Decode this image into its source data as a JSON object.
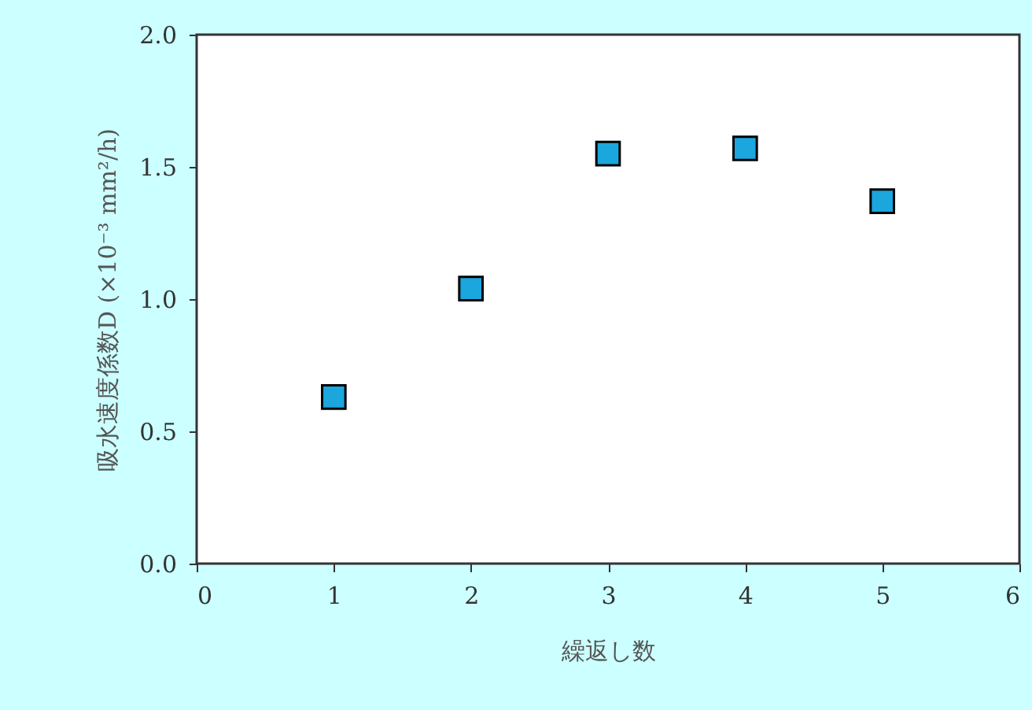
{
  "chart_data": {
    "type": "scatter",
    "xlabel": "繰返し数",
    "ylabel": "吸水速度係数D (×10⁻³ mm²/h)",
    "x": [
      1,
      2,
      3,
      4,
      5
    ],
    "series": [
      {
        "color": "#1ba6dd",
        "values": [
          0.63,
          1.04,
          1.55,
          1.57,
          1.37
        ]
      }
    ],
    "marker": "square",
    "xlim": [
      0,
      6
    ],
    "xticks": [
      0,
      1,
      2,
      3,
      4,
      5,
      6
    ],
    "ylim": [
      0,
      2
    ],
    "yticks": [
      {
        "value": 0,
        "label": "0.0"
      },
      {
        "value": 0.5,
        "label": "0.5"
      },
      {
        "value": 1,
        "label": "1.0"
      },
      {
        "value": 1.5,
        "label": "1.5"
      },
      {
        "value": 2,
        "label": "2.0"
      }
    ],
    "grid": false,
    "legend": false
  }
}
